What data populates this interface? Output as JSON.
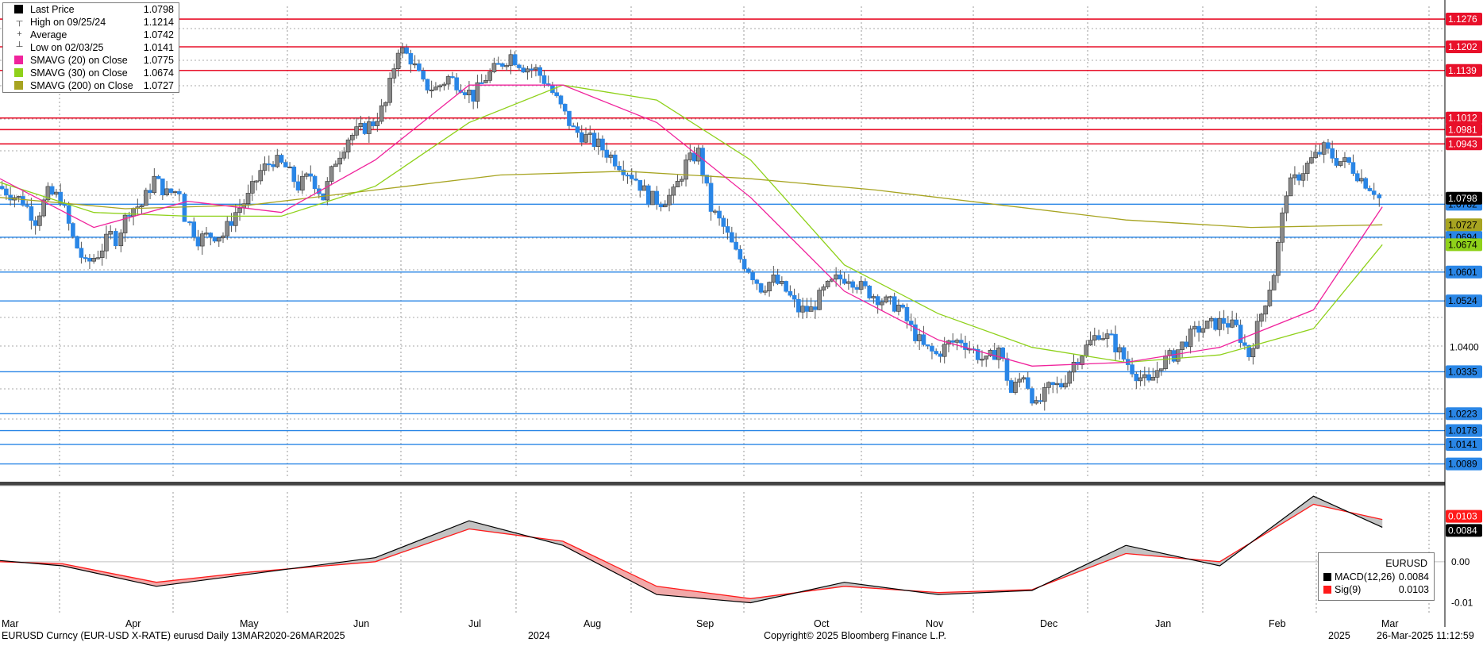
{
  "legend": {
    "items": [
      {
        "label": "Last Price",
        "value": "1.0798",
        "color": "#000000",
        "icon": "black-square-icon"
      },
      {
        "label": "High on 09/25/24",
        "value": "1.1214",
        "color": "#555555",
        "icon": "high-marker-icon"
      },
      {
        "label": "Average",
        "value": "1.0742",
        "color": "#555555",
        "icon": "average-marker-icon"
      },
      {
        "label": "Low on 02/03/25",
        "value": "1.0141",
        "color": "#555555",
        "icon": "low-marker-icon"
      },
      {
        "label": "SMAVG (20)  on Close",
        "value": "1.0775",
        "color": "#f0239c",
        "icon": "pink-square-icon"
      },
      {
        "label": "SMAVG (30)  on Close",
        "value": "1.0674",
        "color": "#8fd11a",
        "icon": "green-square-icon"
      },
      {
        "label": "SMAVG (200)  on Close",
        "value": "1.0727",
        "color": "#a7a421",
        "icon": "olive-square-icon"
      }
    ]
  },
  "macd_legend": {
    "title": "EURUSD",
    "rows": [
      {
        "label": "MACD(12,26)",
        "value": "0.0084",
        "color": "#000000"
      },
      {
        "label": "Sig(9)",
        "value": "0.0103",
        "color": "#ff1a1a"
      }
    ]
  },
  "footer": {
    "left": "EURUSD Curncy (EUR-USD X-RATE) eurusd  Daily 13MAR2020-26MAR2025",
    "center": "Copyright© 2025 Bloomberg Finance L.P.",
    "right": "26-Mar-2025 11:12:59"
  },
  "chart_data": [
    {
      "type": "candlestick",
      "ylim": [
        1.005,
        1.131
      ],
      "x_labels": [
        "Mar",
        "Apr",
        "May",
        "Jun",
        "Jul",
        "Aug",
        "Sep",
        "Oct",
        "Nov",
        "Dec",
        "Jan",
        "Feb",
        "Mar"
      ],
      "year_labels": [
        {
          "after": "Jul",
          "label": "2024"
        },
        {
          "after": "Feb",
          "label": "2025"
        }
      ],
      "y_tick_labels": [
        "1.0400"
      ],
      "resistance_levels": [
        "1.1276",
        "1.1202",
        "1.1139",
        "1.1012",
        "1.0981",
        "1.0943"
      ],
      "support_levels": [
        "1.0782",
        "1.0694",
        "1.0601",
        "1.0524",
        "1.0335",
        "1.0223",
        "1.0178",
        "1.0141",
        "1.0089"
      ],
      "price_tags": [
        {
          "label": "1.0798",
          "color": "#000000"
        },
        {
          "label": "1.0727",
          "color": "#a7a421"
        },
        {
          "label": "1.0674",
          "color": "#8fd11a"
        }
      ],
      "close_path": [
        [
          0,
          1.083
        ],
        [
          0.04,
          1.081
        ],
        [
          0.08,
          1.079
        ],
        [
          0.12,
          1.074
        ],
        [
          0.16,
          1.081
        ],
        [
          0.2,
          1.08
        ],
        [
          0.24,
          1.069
        ],
        [
          0.28,
          1.062
        ],
        [
          0.32,
          1.065
        ],
        [
          0.36,
          1.07
        ],
        [
          0.38,
          1.069
        ],
        [
          0.42,
          1.077
        ],
        [
          0.46,
          1.078
        ],
        [
          0.5,
          1.085
        ],
        [
          0.54,
          1.081
        ],
        [
          0.58,
          1.082
        ],
        [
          0.6,
          1.075
        ],
        [
          0.64,
          1.069
        ],
        [
          0.68,
          1.07
        ],
        [
          0.72,
          1.07
        ],
        [
          0.76,
          1.076
        ],
        [
          0.8,
          1.08
        ],
        [
          0.84,
          1.087
        ],
        [
          0.88,
          1.09
        ],
        [
          0.92,
          1.088
        ],
        [
          0.96,
          1.083
        ],
        [
          1,
          1.086
        ],
        [
          1.04,
          1.08
        ],
        [
          1.08,
          1.09
        ],
        [
          1.12,
          1.096
        ],
        [
          1.16,
          1.098
        ],
        [
          1.2,
          1.1
        ],
        [
          1.24,
          1.105
        ],
        [
          1.28,
          1.12
        ],
        [
          1.32,
          1.117
        ],
        [
          1.36,
          1.11
        ],
        [
          1.4,
          1.109
        ],
        [
          1.44,
          1.112
        ],
        [
          1.48,
          1.11
        ],
        [
          1.52,
          1.107
        ],
        [
          1.56,
          1.112
        ],
        [
          1.6,
          1.115
        ],
        [
          1.64,
          1.118
        ],
        [
          1.68,
          1.115
        ],
        [
          1.72,
          1.114
        ],
        [
          1.76,
          1.11
        ],
        [
          1.8,
          1.104
        ],
        [
          1.84,
          1.098
        ],
        [
          1.88,
          1.096
        ],
        [
          1.92,
          1.094
        ],
        [
          1.96,
          1.091
        ],
        [
          2,
          1.088
        ],
        [
          2.04,
          1.085
        ],
        [
          2.08,
          1.08
        ],
        [
          2.12,
          1.079
        ],
        [
          2.16,
          1.081
        ],
        [
          2.2,
          1.089
        ],
        [
          2.24,
          1.092
        ],
        [
          2.28,
          1.077
        ],
        [
          2.32,
          1.072
        ],
        [
          2.36,
          1.065
        ],
        [
          2.4,
          1.061
        ],
        [
          2.44,
          1.056
        ],
        [
          2.48,
          1.058
        ],
        [
          2.52,
          1.055
        ],
        [
          2.56,
          1.05
        ],
        [
          2.6,
          1.05
        ],
        [
          2.64,
          1.055
        ],
        [
          2.68,
          1.058
        ],
        [
          2.72,
          1.059
        ],
        [
          2.76,
          1.056
        ],
        [
          2.8,
          1.054
        ],
        [
          2.84,
          1.052
        ],
        [
          2.88,
          1.051
        ],
        [
          2.92,
          1.045
        ],
        [
          2.96,
          1.04
        ],
        [
          3,
          1.038
        ],
        [
          3.04,
          1.041
        ],
        [
          3.08,
          1.042
        ],
        [
          3.12,
          1.039
        ],
        [
          3.16,
          1.036
        ],
        [
          3.2,
          1.04
        ],
        [
          3.24,
          1.028
        ],
        [
          3.28,
          1.033
        ],
        [
          3.32,
          1.024
        ],
        [
          3.36,
          1.029
        ],
        [
          3.4,
          1.03
        ],
        [
          3.44,
          1.036
        ],
        [
          3.48,
          1.04
        ],
        [
          3.52,
          1.044
        ],
        [
          3.56,
          1.042
        ],
        [
          3.6,
          1.037
        ],
        [
          3.64,
          1.033
        ],
        [
          3.68,
          1.03
        ],
        [
          3.72,
          1.036
        ],
        [
          3.76,
          1.038
        ],
        [
          3.8,
          1.042
        ],
        [
          3.84,
          1.045
        ],
        [
          3.88,
          1.046
        ],
        [
          3.92,
          1.047
        ],
        [
          3.96,
          1.045
        ],
        [
          4,
          1.038
        ],
        [
          4.04,
          1.049
        ],
        [
          4.08,
          1.06
        ],
        [
          4.12,
          1.082
        ],
        [
          4.16,
          1.086
        ],
        [
          4.2,
          1.09
        ],
        [
          4.24,
          1.093
        ],
        [
          4.28,
          1.09
        ],
        [
          4.32,
          1.089
        ],
        [
          4.36,
          1.085
        ],
        [
          4.4,
          1.082
        ],
        [
          4.42,
          1.0798
        ]
      ],
      "sma20_path": [
        [
          0,
          1.085
        ],
        [
          0.3,
          1.072
        ],
        [
          0.6,
          1.079
        ],
        [
          0.9,
          1.076
        ],
        [
          1.2,
          1.09
        ],
        [
          1.5,
          1.11
        ],
        [
          1.8,
          1.11
        ],
        [
          2.1,
          1.1
        ],
        [
          2.4,
          1.08
        ],
        [
          2.7,
          1.055
        ],
        [
          3,
          1.042
        ],
        [
          3.3,
          1.035
        ],
        [
          3.6,
          1.036
        ],
        [
          3.9,
          1.04
        ],
        [
          4.2,
          1.05
        ],
        [
          4.42,
          1.0775
        ]
      ],
      "sma30_path": [
        [
          0,
          1.084
        ],
        [
          0.3,
          1.076
        ],
        [
          0.6,
          1.075
        ],
        [
          0.9,
          1.075
        ],
        [
          1.2,
          1.083
        ],
        [
          1.5,
          1.1
        ],
        [
          1.8,
          1.11
        ],
        [
          2.1,
          1.106
        ],
        [
          2.4,
          1.09
        ],
        [
          2.7,
          1.062
        ],
        [
          3,
          1.049
        ],
        [
          3.3,
          1.04
        ],
        [
          3.6,
          1.036
        ],
        [
          3.9,
          1.038
        ],
        [
          4.2,
          1.045
        ],
        [
          4.42,
          1.0674
        ]
      ],
      "sma200_path": [
        [
          0,
          1.08
        ],
        [
          0.4,
          1.077
        ],
        [
          0.8,
          1.078
        ],
        [
          1.2,
          1.082
        ],
        [
          1.6,
          1.086
        ],
        [
          2,
          1.087
        ],
        [
          2.4,
          1.085
        ],
        [
          2.8,
          1.082
        ],
        [
          3.2,
          1.078
        ],
        [
          3.6,
          1.074
        ],
        [
          4,
          1.072
        ],
        [
          4.42,
          1.0727
        ]
      ]
    },
    {
      "type": "line",
      "series": [
        {
          "name": "MACD(12,26)"
        },
        {
          "name": "Sig(9)"
        }
      ],
      "y_tick_labels": [
        "0.00",
        "-0.01"
      ],
      "ylim": [
        -0.013,
        0.017
      ],
      "value_tags": [
        {
          "label": "0.0103",
          "color": "#ff1a1a"
        },
        {
          "label": "0.0084",
          "color": "#000000"
        }
      ],
      "macd_path": [
        [
          0,
          0.0003
        ],
        [
          0.2,
          -0.001
        ],
        [
          0.5,
          -0.006
        ],
        [
          0.8,
          -0.003
        ],
        [
          1.2,
          0.001
        ],
        [
          1.5,
          0.01
        ],
        [
          1.8,
          0.004
        ],
        [
          2.1,
          -0.008
        ],
        [
          2.4,
          -0.01
        ],
        [
          2.7,
          -0.005
        ],
        [
          3,
          -0.008
        ],
        [
          3.3,
          -0.007
        ],
        [
          3.6,
          0.004
        ],
        [
          3.9,
          -0.001
        ],
        [
          4.2,
          0.016
        ],
        [
          4.42,
          0.0084
        ]
      ],
      "signal_path": [
        [
          0,
          0.0
        ],
        [
          0.2,
          -0.0005
        ],
        [
          0.5,
          -0.005
        ],
        [
          0.8,
          -0.0025
        ],
        [
          1.2,
          0.0
        ],
        [
          1.5,
          0.008
        ],
        [
          1.8,
          0.005
        ],
        [
          2.1,
          -0.006
        ],
        [
          2.4,
          -0.009
        ],
        [
          2.7,
          -0.006
        ],
        [
          3,
          -0.0075
        ],
        [
          3.3,
          -0.0068
        ],
        [
          3.6,
          0.002
        ],
        [
          3.9,
          0.0
        ],
        [
          4.2,
          0.014
        ],
        [
          4.42,
          0.0103
        ]
      ]
    }
  ],
  "colors": {
    "up": "#8a8a8a",
    "down": "#2a86e6",
    "resistance": "#e8102a",
    "support": "#2a86e6",
    "sma20": "#f0239c",
    "sma30": "#8fd11a",
    "sma200": "#a7a421",
    "macd_fill_pos": "#bdbdbd",
    "macd_fill_neg": "#f0a0a0"
  }
}
